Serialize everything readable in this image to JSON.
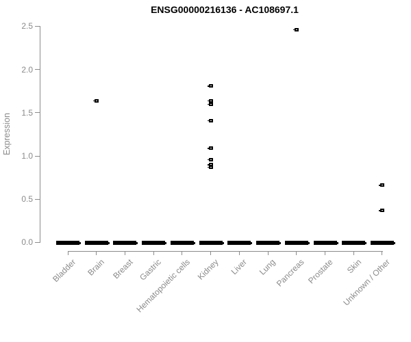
{
  "chart_data": {
    "type": "scatter",
    "title": "ENSG00000216136 - AC108697.1",
    "ylabel": "Expression",
    "xlabel": "",
    "ylim": [
      0,
      2.5
    ],
    "ytick_labels": [
      "0.0",
      "0.5",
      "1.0",
      "1.5",
      "2.0",
      "2.5"
    ],
    "grid": false,
    "legend": false,
    "categories": [
      "Bladder",
      "Brain",
      "Breast",
      "Gastric",
      "Hematopoietic cells",
      "Kidney",
      "Liver",
      "Lung",
      "Pancreas",
      "Prostate",
      "Skin",
      "Unknown / Other"
    ],
    "zero_cluster_note": "Every category shows a dense horizontal cluster of overlapping square markers at expression 0.0",
    "outliers": [
      {
        "category": "Brain",
        "values": [
          1.64
        ]
      },
      {
        "category": "Kidney",
        "values": [
          1.81,
          1.64,
          1.6,
          1.41,
          1.09,
          0.96,
          0.9,
          0.87
        ]
      },
      {
        "category": "Pancreas",
        "values": [
          2.46
        ]
      },
      {
        "category": "Unknown / Other",
        "values": [
          0.66,
          0.37
        ]
      }
    ],
    "colors": {
      "marker": "#000000",
      "axis": "#8a8a8a",
      "tick_label": "#8a8a8a",
      "title": "#000000",
      "background": "#ffffff"
    }
  }
}
